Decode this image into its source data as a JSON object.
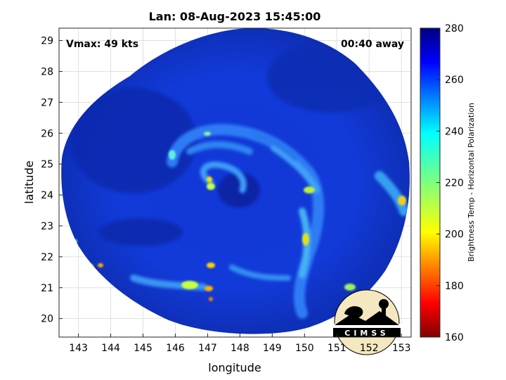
{
  "title": "Lan: 08-Aug-2023 15:45:00",
  "vmax_label": "Vmax: 49 kts",
  "time_away": "00:40 away",
  "xlabel": "longitude",
  "ylabel": "latitude",
  "colorbar": {
    "label": "Brightness Temp - Horizontal Polarization",
    "min": 160,
    "max": 280,
    "ticks": [
      "160",
      "180",
      "200",
      "220",
      "240",
      "260",
      "280"
    ],
    "colormap": "jet"
  },
  "logo_text": "CIMSS",
  "chart_data": {
    "type": "heatmap",
    "title": "Lan: 08-Aug-2023 15:45:00",
    "xlabel": "longitude",
    "ylabel": "latitude",
    "xlim": [
      142.4,
      153.3
    ],
    "ylim": [
      19.4,
      29.4
    ],
    "x_ticks": [
      "143",
      "144",
      "145",
      "146",
      "147",
      "148",
      "149",
      "150",
      "151",
      "152",
      "153"
    ],
    "y_ticks": [
      "20",
      "21",
      "22",
      "23",
      "24",
      "25",
      "26",
      "27",
      "28",
      "29"
    ],
    "storm_center": {
      "lon": 148.1,
      "lat": 24.0
    },
    "background_tb": 265,
    "grid": true
  }
}
